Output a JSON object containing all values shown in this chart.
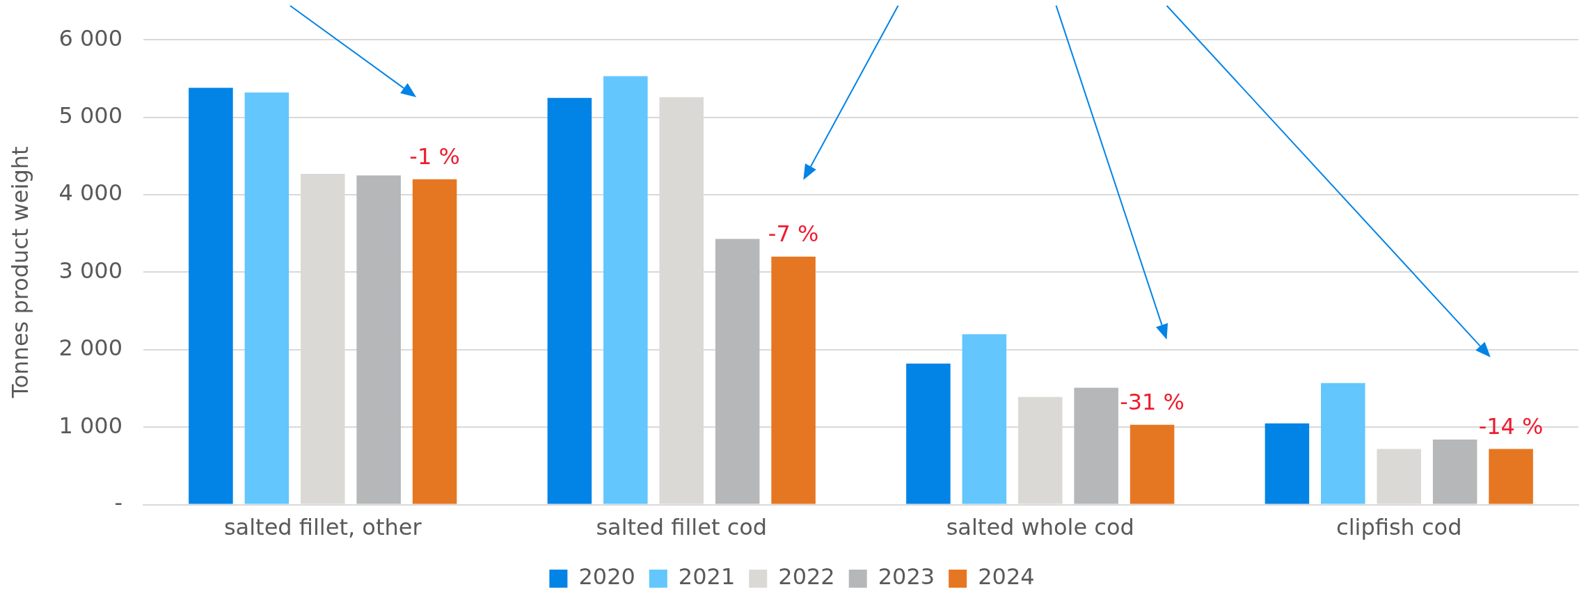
{
  "chart_data": {
    "type": "bar",
    "ylabel": "Tonnes product weight",
    "categories": [
      "salted fillet, other",
      "salted fillet cod",
      "salted whole cod",
      "clipfish cod"
    ],
    "series": [
      {
        "name": "2020",
        "color": "#0283e6",
        "values": [
          5380,
          5250,
          1820,
          1050
        ]
      },
      {
        "name": "2021",
        "color": "#63c6fd",
        "values": [
          5320,
          5530,
          2200,
          1570
        ]
      },
      {
        "name": "2022",
        "color": "#dad9d5",
        "values": [
          4270,
          5260,
          1390,
          720
        ]
      },
      {
        "name": "2023",
        "color": "#b6b7b9",
        "values": [
          4250,
          3430,
          1510,
          840
        ]
      },
      {
        "name": "2024",
        "color": "#e67722",
        "values": [
          4200,
          3200,
          1030,
          720
        ]
      }
    ],
    "annotations": [
      "-1 %",
      "-7 %",
      "-31 %",
      "-14 %"
    ],
    "ylim": [
      0,
      6000
    ],
    "yticks": [
      {
        "value": 0,
        "label": "-"
      },
      {
        "value": 1000,
        "label": "1 000"
      },
      {
        "value": 2000,
        "label": "2 000"
      },
      {
        "value": 3000,
        "label": "3 000"
      },
      {
        "value": 4000,
        "label": "4 000"
      },
      {
        "value": 5000,
        "label": "5 000"
      },
      {
        "value": 6000,
        "label": "6 000"
      }
    ],
    "grid": "y",
    "legend": "bottom"
  }
}
